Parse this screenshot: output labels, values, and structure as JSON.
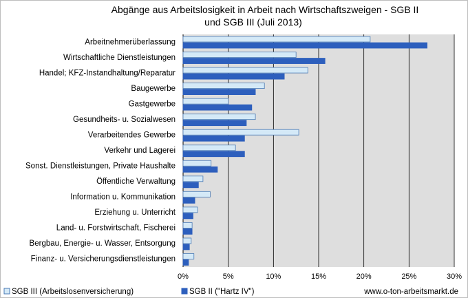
{
  "chart_data": {
    "type": "bar",
    "orientation": "horizontal",
    "title_line1": "Abgänge aus Arbeitslosigkeit in Arbeit nach Wirtschaftszweigen - SGB II",
    "title_line2": "und SGB III (Juli 2013)",
    "categories": [
      "Arbeitnehmerüberlassung",
      "Wirtschaftliche Dienstleistungen",
      "Handel; KFZ-Instandhaltung/Reparatur",
      "Baugewerbe",
      "Gastgewerbe",
      "Gesundheits- u. Sozialwesen",
      "Verarbeitendes Gewerbe",
      "Verkehr und Lagerei",
      "Sonst. Dienstleistungen, Private Haushalte",
      "Öffentliche Verwaltung",
      "Information u. Kommunikation",
      "Erziehung u. Unterricht",
      "Land- u. Forstwirtschaft, Fischerei",
      "Bergbau, Energie- u. Wasser, Entsorgung",
      "Finanz- u. Versicherungsdienstleistungen"
    ],
    "series": [
      {
        "name": "SGB III (Arbeitslosenversicherung)",
        "color": "#d4e9f7",
        "stroke": "#4a7ab5",
        "values": [
          20.7,
          12.5,
          13.8,
          9.0,
          5.0,
          8.0,
          12.8,
          5.8,
          3.1,
          2.2,
          3.0,
          1.6,
          1.0,
          0.9,
          1.2
        ]
      },
      {
        "name": "SGB II (\"Hartz IV\")",
        "color": "#2d5fbd",
        "stroke": "#2d5fbd",
        "values": [
          27.0,
          15.7,
          11.2,
          8.0,
          7.6,
          7.0,
          6.8,
          6.8,
          3.8,
          1.7,
          1.3,
          1.1,
          1.0,
          0.7,
          0.6
        ]
      }
    ],
    "xlim": [
      0,
      30
    ],
    "xticks": [
      "0%",
      "5%",
      "10%",
      "15%",
      "20%",
      "25%",
      "30%"
    ],
    "grid": true,
    "legend_position": "bottom-left",
    "source": "www.o-ton-arbeitsmarkt.de"
  }
}
